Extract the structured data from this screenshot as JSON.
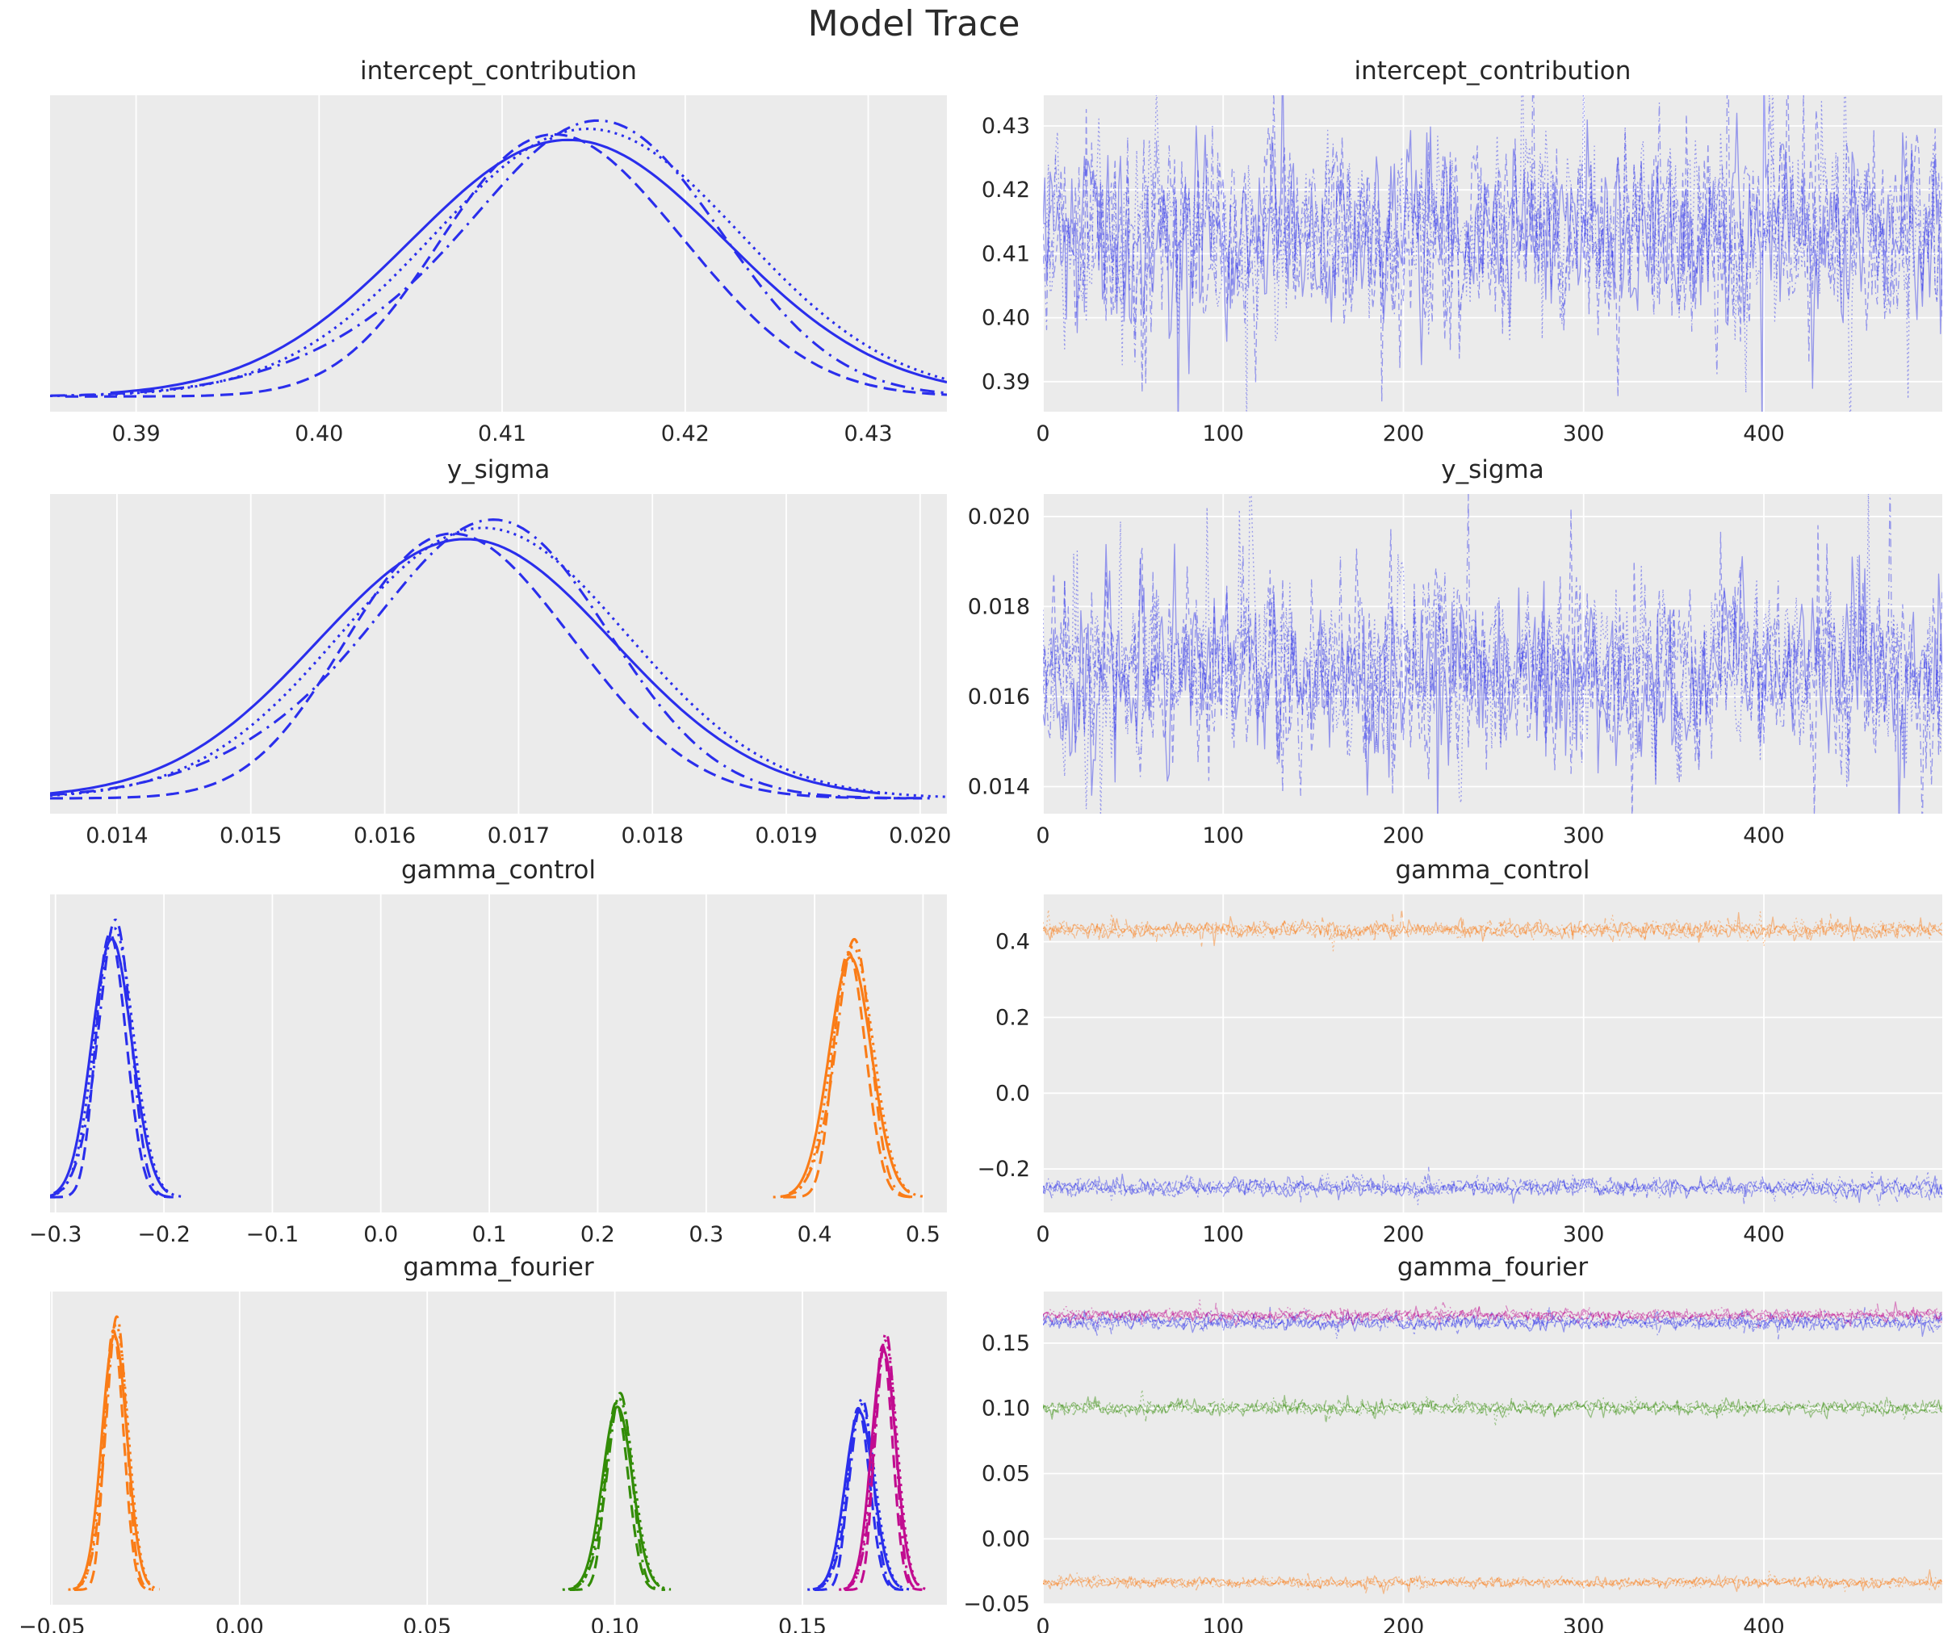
{
  "figure": {
    "title": "Model Trace",
    "chains": 4,
    "chain_linestyles": [
      "solid",
      "dashed",
      "dotted",
      "dash-dot"
    ],
    "background": "#ffffff",
    "axes_background": "#ebebeb",
    "grid_color": "#ffffff",
    "text_color": "#262626",
    "palette": {
      "blue": "#2a2eec",
      "orange": "#fa7c17",
      "green": "#328c06",
      "magenta": "#c10c90"
    }
  },
  "chart_data": [
    {
      "variable": "intercept_contribution",
      "kde": {
        "type": "kde",
        "title": "intercept_contribution",
        "xlim": [
          0.3853,
          0.4343
        ],
        "xticks": [
          [
            0.39,
            "0.39"
          ],
          [
            0.4,
            "0.40"
          ],
          [
            0.41,
            "0.41"
          ],
          [
            0.42,
            "0.42"
          ],
          [
            0.43,
            "0.43"
          ]
        ],
        "grid": "x",
        "series": [
          {
            "color": "#2a2eec",
            "mean": 0.4132,
            "sd": 0.0082,
            "height": 1.0
          }
        ]
      },
      "trace": {
        "type": "line",
        "title": "intercept_contribution",
        "xlim": [
          0,
          499
        ],
        "xticks": [
          [
            0,
            "0"
          ],
          [
            100,
            "100"
          ],
          [
            200,
            "200"
          ],
          [
            300,
            "300"
          ],
          [
            400,
            "400"
          ]
        ],
        "ylim": [
          0.3853,
          0.4348
        ],
        "yticks": [
          [
            0.39,
            "0.39"
          ],
          [
            0.4,
            "0.40"
          ],
          [
            0.41,
            "0.41"
          ],
          [
            0.42,
            "0.42"
          ],
          [
            0.43,
            "0.43"
          ]
        ],
        "grid": "both",
        "series": [
          {
            "color": "#2a2eec",
            "mean": 0.4132,
            "sd": 0.0072
          }
        ]
      }
    },
    {
      "variable": "y_sigma",
      "kde": {
        "type": "kde",
        "title": "y_sigma",
        "xlim": [
          0.0135,
          0.0202
        ],
        "xticks": [
          [
            0.014,
            "0.014"
          ],
          [
            0.015,
            "0.015"
          ],
          [
            0.016,
            "0.016"
          ],
          [
            0.017,
            "0.017"
          ],
          [
            0.018,
            "0.018"
          ],
          [
            0.019,
            "0.019"
          ],
          [
            0.02,
            "0.020"
          ]
        ],
        "grid": "x",
        "series": [
          {
            "color": "#2a2eec",
            "mean": 0.01655,
            "sd": 0.00105,
            "height": 1.0
          }
        ]
      },
      "trace": {
        "type": "line",
        "title": "y_sigma",
        "xlim": [
          0,
          499
        ],
        "xticks": [
          [
            0,
            "0"
          ],
          [
            100,
            "100"
          ],
          [
            200,
            "200"
          ],
          [
            300,
            "300"
          ],
          [
            400,
            "400"
          ]
        ],
        "ylim": [
          0.0134,
          0.0205
        ],
        "yticks": [
          [
            0.014,
            "0.014"
          ],
          [
            0.016,
            "0.016"
          ],
          [
            0.018,
            "0.018"
          ],
          [
            0.02,
            "0.020"
          ]
        ],
        "grid": "both",
        "series": [
          {
            "color": "#2a2eec",
            "mean": 0.01655,
            "sd": 0.00095
          }
        ]
      }
    },
    {
      "variable": "gamma_control",
      "kde": {
        "type": "kde",
        "title": "gamma_control",
        "xlim": [
          -0.305,
          0.522
        ],
        "xticks": [
          [
            -0.3,
            "−0.3"
          ],
          [
            -0.2,
            "−0.2"
          ],
          [
            -0.1,
            "−0.1"
          ],
          [
            0.0,
            "0.0"
          ],
          [
            0.1,
            "0.1"
          ],
          [
            0.2,
            "0.2"
          ],
          [
            0.3,
            "0.3"
          ],
          [
            0.4,
            "0.4"
          ],
          [
            0.5,
            "0.5"
          ]
        ],
        "grid": "x",
        "series": [
          {
            "color": "#2a2eec",
            "mean": -0.249,
            "sd": 0.0175,
            "height": 1.0
          },
          {
            "color": "#fa7c17",
            "mean": 0.432,
            "sd": 0.0185,
            "height": 0.93
          }
        ]
      },
      "trace": {
        "type": "line",
        "title": "gamma_control",
        "xlim": [
          0,
          499
        ],
        "xticks": [
          [
            0,
            "0"
          ],
          [
            100,
            "100"
          ],
          [
            200,
            "200"
          ],
          [
            300,
            "300"
          ],
          [
            400,
            "400"
          ]
        ],
        "ylim": [
          -0.315,
          0.525
        ],
        "yticks": [
          [
            0.4,
            "0.4"
          ],
          [
            0.2,
            "0.2"
          ],
          [
            0.0,
            "0.0"
          ],
          [
            -0.2,
            "−0.2"
          ]
        ],
        "grid": "both",
        "series": [
          {
            "color": "#fa7c17",
            "mean": 0.432,
            "sd": 0.0105
          },
          {
            "color": "#2a2eec",
            "mean": -0.249,
            "sd": 0.0115
          }
        ]
      }
    },
    {
      "variable": "gamma_fourier",
      "kde": {
        "type": "kde",
        "title": "gamma_fourier",
        "xlim": [
          -0.0505,
          0.1885
        ],
        "xticks": [
          [
            -0.05,
            "−0.05"
          ],
          [
            0.0,
            "0.00"
          ],
          [
            0.05,
            "0.05"
          ],
          [
            0.1,
            "0.10"
          ],
          [
            0.15,
            "0.15"
          ]
        ],
        "grid": "x",
        "series": [
          {
            "color": "#fa7c17",
            "mean": -0.0335,
            "sd": 0.0032,
            "height": 1.0
          },
          {
            "color": "#328c06",
            "mean": 0.1005,
            "sd": 0.0038,
            "height": 0.72
          },
          {
            "color": "#2a2eec",
            "mean": 0.165,
            "sd": 0.0036,
            "height": 0.7
          },
          {
            "color": "#c10c90",
            "mean": 0.1715,
            "sd": 0.0031,
            "height": 0.94
          }
        ]
      },
      "trace": {
        "type": "line",
        "title": "gamma_fourier",
        "xlim": [
          0,
          499
        ],
        "xticks": [
          [
            0,
            "0"
          ],
          [
            100,
            "100"
          ],
          [
            200,
            "200"
          ],
          [
            300,
            "300"
          ],
          [
            400,
            "400"
          ]
        ],
        "ylim": [
          -0.0505,
          0.1895
        ],
        "yticks": [
          [
            0.15,
            "0.15"
          ],
          [
            0.1,
            "0.10"
          ],
          [
            0.05,
            "0.05"
          ],
          [
            0.0,
            "0.00"
          ],
          [
            -0.05,
            "−0.05"
          ]
        ],
        "grid": "both",
        "series": [
          {
            "color": "#2a2eec",
            "mean": 0.166,
            "sd": 0.0028
          },
          {
            "color": "#c10c90",
            "mean": 0.1715,
            "sd": 0.0022
          },
          {
            "color": "#328c06",
            "mean": 0.1005,
            "sd": 0.0026
          },
          {
            "color": "#fa7c17",
            "mean": -0.0335,
            "sd": 0.002
          }
        ]
      }
    }
  ]
}
